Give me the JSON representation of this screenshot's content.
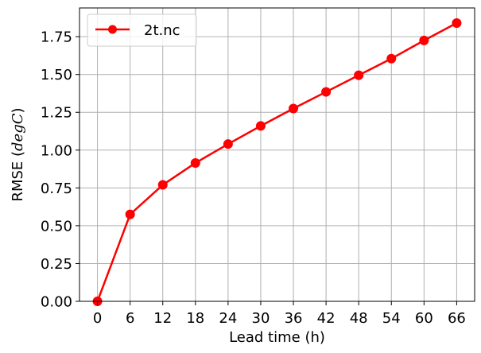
{
  "chart_data": {
    "type": "line",
    "xlabel": "Lead time (h)",
    "ylabel": "RMSE (",
    "ylabel_italic": "degC",
    "ylabel_suffix": ")",
    "x": [
      0,
      6,
      12,
      18,
      24,
      30,
      36,
      42,
      48,
      54,
      60,
      66
    ],
    "xticks": [
      "0",
      "6",
      "12",
      "18",
      "24",
      "30",
      "36",
      "42",
      "48",
      "54",
      "60",
      "66"
    ],
    "yticks": [
      "0.00",
      "0.25",
      "0.50",
      "0.75",
      "1.00",
      "1.25",
      "1.50",
      "1.75"
    ],
    "ylim": [
      0,
      1.94
    ],
    "xlim": [
      -3.3,
      69.3
    ],
    "grid": true,
    "legend_position": "top-left",
    "series": [
      {
        "name": "2t.nc",
        "color": "#ff0000",
        "marker": "circle",
        "values": [
          0.0,
          0.575,
          0.77,
          0.915,
          1.04,
          1.16,
          1.275,
          1.385,
          1.495,
          1.605,
          1.725,
          1.84
        ]
      }
    ]
  }
}
